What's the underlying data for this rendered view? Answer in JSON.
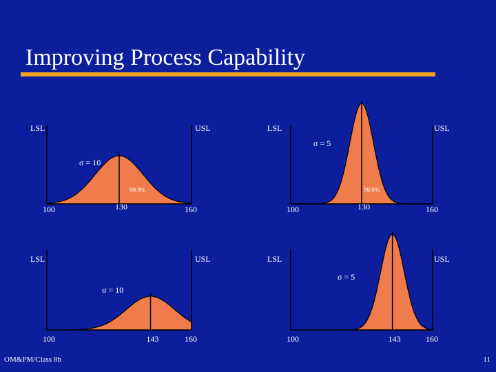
{
  "slide": {
    "title": "Improving Process Capability",
    "footer_left": "OM&PM/Class 8b",
    "page_number": "11"
  },
  "colors": {
    "background": "#0d1e9c",
    "accent_rule": "#f2a31b",
    "curve_fill": "#f07c4b",
    "line": "#000000",
    "text": "#ffffff"
  },
  "panels": [
    {
      "id": "top-left",
      "lsl_label": "LSL",
      "usl_label": "USL",
      "sigma_label": "σ = 10",
      "coverage_label": "99.9%",
      "ticks": [
        "100",
        "130",
        "160"
      ],
      "mean": 130,
      "sigma": 10,
      "lsl": 100,
      "usl": 160
    },
    {
      "id": "top-right",
      "lsl_label": "LSL",
      "usl_label": "USL",
      "sigma_label": "σ = 5",
      "coverage_label": "99.9%",
      "ticks": [
        "100",
        "130",
        "160"
      ],
      "mean": 130,
      "sigma": 5,
      "lsl": 100,
      "usl": 160
    },
    {
      "id": "bottom-left",
      "lsl_label": "LSL",
      "usl_label": "USL",
      "sigma_label": "σ = 10",
      "coverage_label": "",
      "ticks": [
        "100",
        "143",
        "160"
      ],
      "mean": 143,
      "sigma": 10,
      "lsl": 100,
      "usl": 160
    },
    {
      "id": "bottom-right",
      "lsl_label": "LSL",
      "usl_label": "USL",
      "sigma_label": "σ = 5",
      "coverage_label": "",
      "ticks": [
        "100",
        "143",
        "160"
      ],
      "mean": 143,
      "sigma": 5,
      "lsl": 100,
      "usl": 160
    }
  ]
}
